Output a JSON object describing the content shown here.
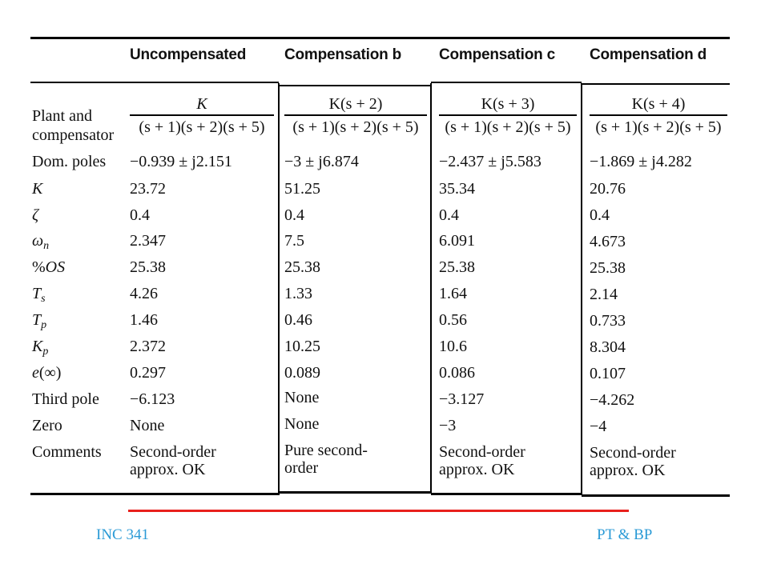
{
  "table": {
    "headers": [
      "Uncompensated",
      "Compensation b",
      "Compensation c",
      "Compensation d"
    ],
    "tf": [
      {
        "num": "K",
        "den": "(s + 1)(s + 2)(s + 5)"
      },
      {
        "num": "K(s + 2)",
        "den": "(s + 1)(s + 2)(s + 5)"
      },
      {
        "num": "K(s + 3)",
        "den": "(s + 1)(s + 2)(s + 5)"
      },
      {
        "num": "K(s + 4)",
        "den": "(s + 1)(s + 2)(s + 5)"
      }
    ],
    "row_labels": {
      "plant_1": "Plant and",
      "plant_2": "compensator",
      "dom_poles": "Dom. poles",
      "K": "K",
      "zeta": "ζ",
      "wn": "ωn",
      "os": "%OS",
      "ts": "Ts",
      "tp": "Tp",
      "kp": "Kp",
      "einf": "e(∞)",
      "third_pole": "Third pole",
      "zero": "Zero",
      "comments": "Comments"
    },
    "cols": [
      {
        "dom_poles": "−0.939 ± j2.151",
        "K": "23.72",
        "zeta": "0.4",
        "wn": "2.347",
        "os": "25.38",
        "ts": "4.26",
        "tp": "1.46",
        "kp": "2.372",
        "einf": "0.297",
        "third_pole": "−6.123",
        "zero": "None",
        "comment_1": "Second-order",
        "comment_2": "approx. OK"
      },
      {
        "dom_poles": "−3 ± j6.874",
        "K": "51.25",
        "zeta": "0.4",
        "wn": "7.5",
        "os": "25.38",
        "ts": "1.33",
        "tp": "0.46",
        "kp": "10.25",
        "einf": "0.089",
        "third_pole": "None",
        "zero": "None",
        "comment_1": "Pure second-",
        "comment_2": "order"
      },
      {
        "dom_poles": "−2.437 ± j5.583",
        "K": "35.34",
        "zeta": "0.4",
        "wn": "6.091",
        "os": "25.38",
        "ts": "1.64",
        "tp": "0.56",
        "kp": "10.6",
        "einf": "0.086",
        "third_pole": "−3.127",
        "zero": "−3",
        "comment_1": "Second-order",
        "comment_2": "approx. OK"
      },
      {
        "dom_poles": "−1.869 ± j4.282",
        "K": "20.76",
        "zeta": "0.4",
        "wn": "4.673",
        "os": "25.38",
        "ts": "2.14",
        "tp": "0.733",
        "kp": "8.304",
        "einf": "0.107",
        "third_pole": "−4.262",
        "zero": "−4",
        "comment_1": "Second-order",
        "comment_2": "approx. OK"
      }
    ]
  },
  "footer": {
    "left": "INC 341",
    "right": "PT & BP",
    "line_color": "#e8201c",
    "text_color": "#2a9ad6"
  }
}
